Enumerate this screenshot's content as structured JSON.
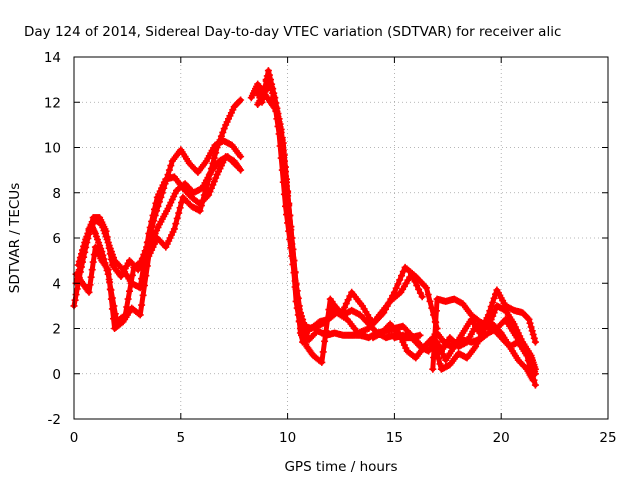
{
  "chart_data": {
    "type": "scatter",
    "title": "Day 124 of 2014, Sidereal Day-to-day VTEC variation (SDTVAR) for receiver alic",
    "xlabel": "GPS time / hours",
    "ylabel": "SDTVAR / TECUs",
    "xlim": [
      0,
      25
    ],
    "ylim": [
      -2,
      14
    ],
    "xticks": [
      0,
      5,
      10,
      15,
      20,
      25
    ],
    "yticks": [
      -2,
      0,
      2,
      4,
      6,
      8,
      10,
      12,
      14
    ],
    "grid": true,
    "marker": "plus",
    "color": "#ff0000",
    "series": [
      {
        "x": [
          0.0,
          0.3,
          0.6,
          0.9,
          1.2,
          1.5,
          1.8,
          2.2,
          2.6,
          3.0,
          3.4,
          3.8,
          4.2,
          4.6,
          5.0,
          5.4,
          5.8,
          6.2,
          6.6,
          7.0,
          7.4,
          7.8
        ],
        "y": [
          3.0,
          4.5,
          5.8,
          6.9,
          6.9,
          6.3,
          4.8,
          4.3,
          5.0,
          4.6,
          5.6,
          7.0,
          8.2,
          9.4,
          9.9,
          9.3,
          8.9,
          9.4,
          10.1,
          10.3,
          10.1,
          9.6
        ]
      },
      {
        "x": [
          0.2,
          0.5,
          0.8,
          1.0,
          1.3,
          1.6,
          2.0,
          2.4,
          2.8,
          3.2,
          3.6,
          4.0,
          4.4,
          4.8,
          5.2,
          5.6,
          6.0,
          6.4,
          6.8,
          7.2,
          7.6
        ],
        "y": [
          4.8,
          5.8,
          6.6,
          6.2,
          5.4,
          4.4,
          2.3,
          2.6,
          4.7,
          5.0,
          5.8,
          6.6,
          7.3,
          8.1,
          8.4,
          8.0,
          8.2,
          8.9,
          9.4,
          9.6,
          9.2
        ]
      },
      {
        "x": [
          0.1,
          0.4,
          0.7,
          1.0,
          1.3,
          1.6,
          1.9,
          2.3,
          2.7,
          3.1,
          3.5,
          3.9,
          4.3,
          4.7,
          5.1,
          5.5,
          5.9,
          6.3,
          6.7,
          7.1,
          7.5,
          7.8
        ],
        "y": [
          4.0,
          5.2,
          6.4,
          6.8,
          6.6,
          5.8,
          5.0,
          4.6,
          4.0,
          3.8,
          6.2,
          7.8,
          8.6,
          8.7,
          8.2,
          7.8,
          7.5,
          7.9,
          8.8,
          9.6,
          9.4,
          9.0
        ]
      },
      {
        "x": [
          0.1,
          0.4,
          0.7,
          1.0,
          1.3,
          1.6,
          1.9,
          2.3,
          2.7,
          3.1,
          3.5,
          3.9,
          4.3,
          4.7,
          5.1,
          5.5,
          5.9,
          6.3,
          6.7,
          7.1,
          7.5,
          7.8
        ],
        "y": [
          4.4,
          4.0,
          3.6,
          5.6,
          5.0,
          4.6,
          2.0,
          2.3,
          2.9,
          2.6,
          5.2,
          6.0,
          5.6,
          6.4,
          7.8,
          7.4,
          7.2,
          8.6,
          10.0,
          11.0,
          11.8,
          12.1
        ]
      },
      {
        "x": [
          8.3,
          8.6,
          8.9,
          9.2,
          9.5,
          9.8,
          10.1,
          10.4,
          10.7,
          11.0,
          11.4,
          11.8,
          12.2,
          12.6,
          13.0,
          13.4,
          13.8,
          14.2,
          14.6,
          15.0,
          15.4,
          15.8,
          16.2
        ],
        "y": [
          12.2,
          12.8,
          12.4,
          12.0,
          11.6,
          10.2,
          7.0,
          4.0,
          2.0,
          1.5,
          1.9,
          1.7,
          1.8,
          1.7,
          1.7,
          1.7,
          1.6,
          1.8,
          1.6,
          1.7,
          1.6,
          1.6,
          1.7
        ]
      },
      {
        "x": [
          8.5,
          8.8,
          9.1,
          9.4,
          9.7,
          10.0,
          10.3,
          10.6,
          10.9,
          11.2,
          11.6,
          12.0,
          12.5,
          13.0,
          13.5,
          14.0,
          14.5,
          15.0,
          15.5,
          16.0,
          16.5,
          17.0
        ],
        "y": [
          12.6,
          12.0,
          13.4,
          12.2,
          10.8,
          8.0,
          5.0,
          1.8,
          1.2,
          0.8,
          0.5,
          3.3,
          2.6,
          3.6,
          3.0,
          2.2,
          2.7,
          3.6,
          4.7,
          4.3,
          3.8,
          2.0
        ]
      },
      {
        "x": [
          8.6,
          8.9,
          9.2,
          9.5,
          9.8,
          10.1,
          10.4,
          10.7,
          11.0,
          11.4,
          11.8,
          12.2,
          12.6,
          13.0,
          13.4,
          13.8,
          14.2,
          14.6,
          15.0,
          15.4,
          15.8,
          16.2
        ],
        "y": [
          11.9,
          12.4,
          12.8,
          11.6,
          9.6,
          7.0,
          3.2,
          1.4,
          2.0,
          2.1,
          2.3,
          3.0,
          2.6,
          2.8,
          2.6,
          2.2,
          1.8,
          1.9,
          2.0,
          2.1,
          1.7,
          1.3
        ]
      },
      {
        "x": [
          9.0,
          9.3,
          9.6,
          9.9,
          10.2,
          10.5,
          10.8,
          11.1,
          11.5,
          11.9,
          12.3,
          12.8,
          13.3,
          13.8,
          14.3,
          14.8,
          15.3,
          15.8,
          16.3
        ],
        "y": [
          13.0,
          12.6,
          10.6,
          7.4,
          5.2,
          3.0,
          2.1,
          2.0,
          2.3,
          2.4,
          2.7,
          2.4,
          1.8,
          2.0,
          2.6,
          3.2,
          3.6,
          4.4,
          3.4
        ]
      },
      {
        "x": [
          14.0,
          14.4,
          14.8,
          15.2,
          15.6,
          16.0,
          16.4,
          16.8,
          17.2,
          17.6,
          18.0,
          18.4,
          18.8,
          19.2,
          19.6,
          20.0,
          20.4,
          20.8,
          21.2,
          21.5
        ],
        "y": [
          1.6,
          1.8,
          2.2,
          1.8,
          1.0,
          0.7,
          1.2,
          1.6,
          0.2,
          0.4,
          0.9,
          0.7,
          1.2,
          2.0,
          2.2,
          1.8,
          1.2,
          0.6,
          0.2,
          -0.3
        ]
      },
      {
        "x": [
          15.0,
          15.4,
          15.8,
          16.2,
          16.6,
          17.0,
          17.4,
          17.8,
          18.2,
          18.6,
          19.0,
          19.4,
          19.8,
          20.2,
          20.6,
          21.0,
          21.4,
          21.6
        ],
        "y": [
          1.6,
          1.7,
          1.6,
          1.2,
          1.0,
          1.8,
          1.3,
          1.2,
          1.5,
          1.4,
          1.5,
          1.8,
          2.0,
          2.4,
          1.8,
          1.2,
          0.6,
          0.0
        ]
      },
      {
        "x": [
          16.8,
          17.0,
          17.4,
          17.8,
          18.2,
          18.6,
          19.0,
          19.4,
          19.8,
          20.2,
          20.6,
          21.0,
          21.4,
          21.6
        ],
        "y": [
          0.2,
          3.3,
          3.2,
          3.3,
          3.1,
          2.6,
          2.3,
          2.1,
          3.0,
          2.8,
          2.2,
          1.4,
          0.8,
          0.2
        ]
      },
      {
        "x": [
          17.0,
          17.4,
          17.8,
          18.2,
          18.6,
          19.0,
          19.4,
          19.8,
          20.2,
          20.6,
          21.0,
          21.3,
          21.6
        ],
        "y": [
          1.4,
          0.6,
          1.2,
          1.8,
          2.4,
          1.8,
          2.6,
          3.7,
          3.0,
          2.8,
          2.7,
          2.4,
          1.4
        ]
      },
      {
        "x": [
          17.2,
          17.6,
          18.0,
          18.4,
          18.8,
          19.2,
          19.6,
          20.0,
          20.4,
          20.8,
          21.2,
          21.6
        ],
        "y": [
          1.0,
          1.6,
          1.2,
          1.4,
          2.1,
          2.2,
          2.0,
          1.6,
          1.2,
          1.4,
          0.8,
          -0.5
        ]
      }
    ]
  }
}
